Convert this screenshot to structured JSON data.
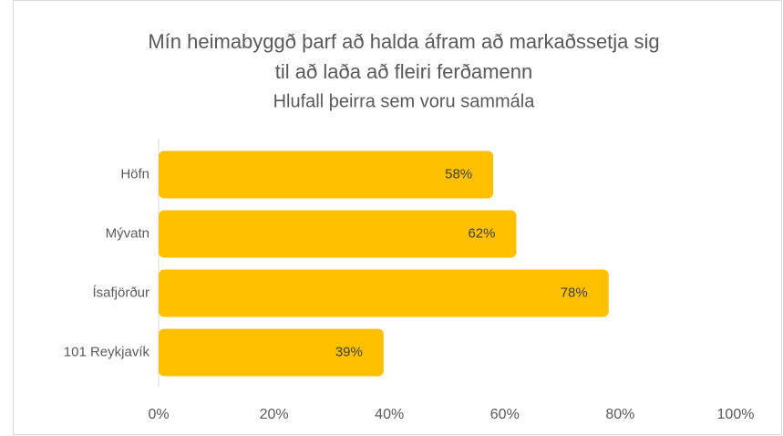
{
  "chart_data": {
    "type": "hbar",
    "title": "Mín heimabyggð þarf að halda áfram að markaðssetja sig",
    "title_line2": "til að laða að fleiri ferðamenn",
    "subtitle": "Hlufall þeirra sem voru sammála",
    "categories": [
      "Höfn",
      "Mývatn",
      "Ísafjörður",
      "101 Reykjavík"
    ],
    "values": [
      58,
      62,
      78,
      39
    ],
    "value_labels": [
      "58%",
      "62%",
      "78%",
      "39%"
    ],
    "color": "#ffc000",
    "xlim": [
      0,
      100
    ],
    "xticks": [
      {
        "value": 0,
        "label": "0%"
      },
      {
        "value": 20,
        "label": "20%"
      },
      {
        "value": 40,
        "label": "40%"
      },
      {
        "value": 60,
        "label": "60%"
      },
      {
        "value": 80,
        "label": "80%"
      },
      {
        "value": 100,
        "label": "100%"
      }
    ],
    "grid": false
  }
}
